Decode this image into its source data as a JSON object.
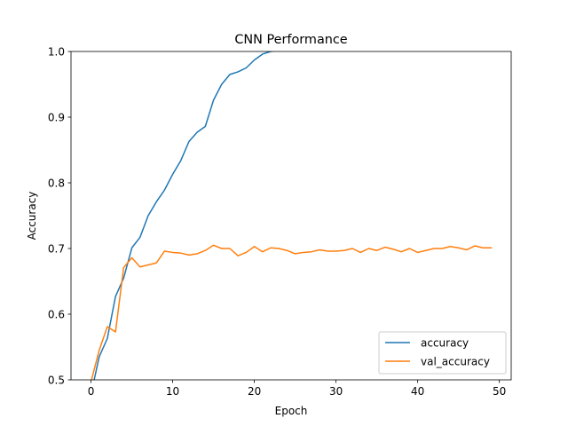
{
  "chart_data": {
    "type": "line",
    "title": "CNN Performance",
    "xlabel": "Epoch",
    "ylabel": "Accuracy",
    "xlim": [
      -2.45,
      51.45
    ],
    "ylim": [
      0.5,
      1.0
    ],
    "xticks": [
      0,
      10,
      20,
      30,
      40,
      50
    ],
    "xtick_labels": [
      "0",
      "10",
      "20",
      "30",
      "40",
      "50"
    ],
    "yticks": [
      0.5,
      0.6,
      0.7,
      0.8,
      0.9,
      1.0
    ],
    "ytick_labels": [
      "0.5",
      "0.6",
      "0.7",
      "0.8",
      "0.9",
      "1.0"
    ],
    "grid": false,
    "legend_position": "lower-right",
    "x": [
      0,
      1,
      2,
      3,
      4,
      5,
      6,
      7,
      8,
      9,
      10,
      11,
      12,
      13,
      14,
      15,
      16,
      17,
      18,
      19,
      20,
      21,
      22,
      23,
      24,
      25,
      26,
      27,
      28,
      29,
      30,
      31,
      32,
      33,
      34,
      35,
      36,
      37,
      38,
      39,
      40,
      41,
      42,
      43,
      44,
      45,
      46,
      47,
      48,
      49
    ],
    "series": [
      {
        "name": "accuracy",
        "color": "#1f77b4",
        "values": [
          0.478,
          0.535,
          0.563,
          0.627,
          0.655,
          0.701,
          0.717,
          0.75,
          0.771,
          0.789,
          0.813,
          0.834,
          0.863,
          0.877,
          0.886,
          0.926,
          0.95,
          0.965,
          0.969,
          0.975,
          0.987,
          0.996,
          1.0,
          1.002,
          1.003,
          1.004,
          1.004,
          1.004,
          1.004,
          1.004,
          1.004,
          1.004,
          1.004,
          1.004,
          1.004,
          1.004,
          1.004,
          1.004,
          1.004,
          1.004,
          1.004,
          1.004,
          1.004,
          1.004,
          1.004,
          1.004,
          1.004,
          1.004,
          1.004,
          1.004
        ]
      },
      {
        "name": "val_accuracy",
        "color": "#ff7f0e",
        "values": [
          0.497,
          0.545,
          0.581,
          0.573,
          0.671,
          0.686,
          0.672,
          0.675,
          0.678,
          0.696,
          0.694,
          0.693,
          0.69,
          0.692,
          0.697,
          0.705,
          0.7,
          0.7,
          0.689,
          0.694,
          0.703,
          0.695,
          0.701,
          0.7,
          0.697,
          0.692,
          0.694,
          0.695,
          0.698,
          0.696,
          0.696,
          0.697,
          0.7,
          0.694,
          0.7,
          0.697,
          0.702,
          0.699,
          0.695,
          0.7,
          0.694,
          0.697,
          0.7,
          0.7,
          0.703,
          0.701,
          0.698,
          0.704,
          0.701,
          0.701
        ]
      }
    ]
  }
}
